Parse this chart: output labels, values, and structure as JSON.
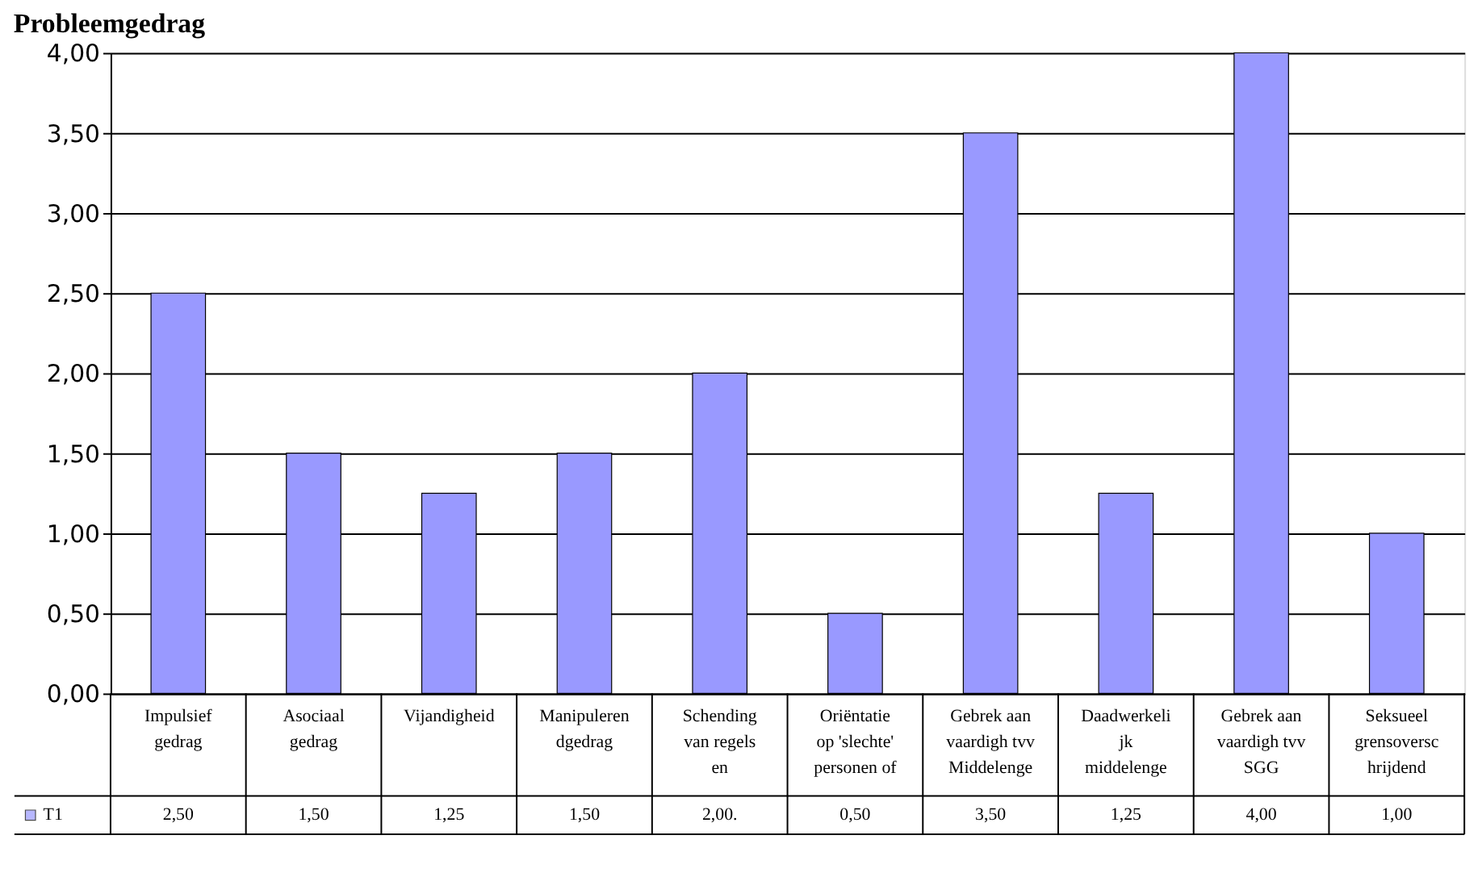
{
  "chart_data": {
    "type": "bar",
    "title": "Probleemgedrag",
    "categories": [
      "Impulsief\ngedrag",
      "Asociaal\ngedrag",
      "Vijandigheid",
      "Manipuleren\ndgedrag",
      "Schending\nvan regels\nen",
      "Oriëntatie\nop 'slechte'\npersonen of",
      "Gebrek aan\nvaardigh tvv\nMiddelenge",
      "Daadwerkeli\njk\nmiddelenge",
      "Gebrek aan\nvaardigh tvv\nSGG",
      "Seksueel\ngrensoversc\nhrijdend"
    ],
    "series": [
      {
        "name": "T1",
        "color": "#9999ff",
        "values": [
          2.5,
          1.5,
          1.25,
          1.5,
          2.0,
          0.5,
          3.5,
          1.25,
          4.0,
          1.0
        ],
        "value_labels": [
          "2,50",
          "1,50",
          "1,25",
          "1,50",
          "2,00.",
          "0,50",
          "3,50",
          "1,25",
          "4,00",
          "1,00"
        ]
      }
    ],
    "ylim": [
      0,
      4
    ],
    "yticks": [
      {
        "value": 0,
        "label": "0,00"
      },
      {
        "value": 0.5,
        "label": "0,50"
      },
      {
        "value": 1,
        "label": "1,00"
      },
      {
        "value": 1.5,
        "label": "1,50"
      },
      {
        "value": 2,
        "label": "2,00"
      },
      {
        "value": 2.5,
        "label": "2,50"
      },
      {
        "value": 3,
        "label": "3,00"
      },
      {
        "value": 3.5,
        "label": "3,50"
      },
      {
        "value": 4,
        "label": "4,00"
      }
    ],
    "grid": "y",
    "legend": "bottom left"
  }
}
